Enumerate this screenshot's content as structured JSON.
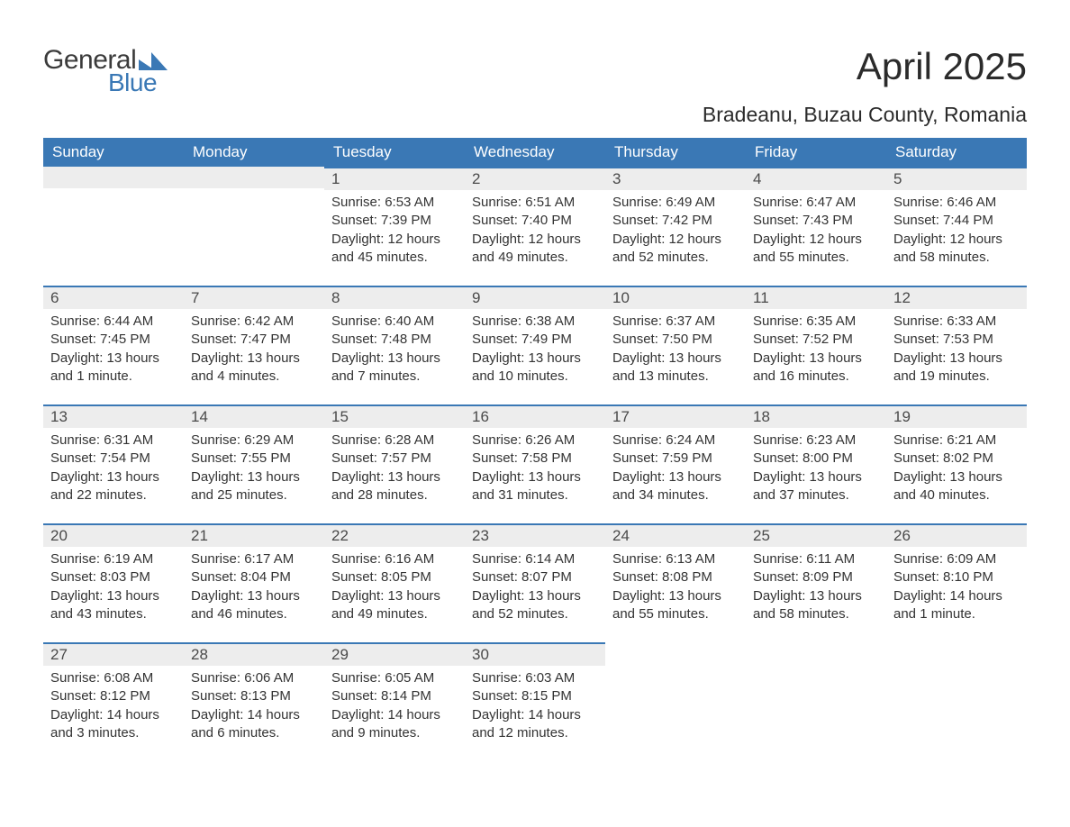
{
  "logo": {
    "text1": "General",
    "text2": "Blue"
  },
  "title": "April 2025",
  "subtitle": "Bradeanu, Buzau County, Romania",
  "colors": {
    "header_bg": "#3a78b5",
    "header_text": "#ffffff",
    "daynum_bg": "#ededed",
    "daynum_text": "#4a4a4a",
    "body_text": "#333333",
    "divider": "#3a78b5",
    "page_bg": "#ffffff"
  },
  "columns": [
    "Sunday",
    "Monday",
    "Tuesday",
    "Wednesday",
    "Thursday",
    "Friday",
    "Saturday"
  ],
  "weeks": [
    [
      null,
      null,
      {
        "n": "1",
        "sunrise": "6:53 AM",
        "sunset": "7:39 PM",
        "daylight": "12 hours and 45 minutes."
      },
      {
        "n": "2",
        "sunrise": "6:51 AM",
        "sunset": "7:40 PM",
        "daylight": "12 hours and 49 minutes."
      },
      {
        "n": "3",
        "sunrise": "6:49 AM",
        "sunset": "7:42 PM",
        "daylight": "12 hours and 52 minutes."
      },
      {
        "n": "4",
        "sunrise": "6:47 AM",
        "sunset": "7:43 PM",
        "daylight": "12 hours and 55 minutes."
      },
      {
        "n": "5",
        "sunrise": "6:46 AM",
        "sunset": "7:44 PM",
        "daylight": "12 hours and 58 minutes."
      }
    ],
    [
      {
        "n": "6",
        "sunrise": "6:44 AM",
        "sunset": "7:45 PM",
        "daylight": "13 hours and 1 minute."
      },
      {
        "n": "7",
        "sunrise": "6:42 AM",
        "sunset": "7:47 PM",
        "daylight": "13 hours and 4 minutes."
      },
      {
        "n": "8",
        "sunrise": "6:40 AM",
        "sunset": "7:48 PM",
        "daylight": "13 hours and 7 minutes."
      },
      {
        "n": "9",
        "sunrise": "6:38 AM",
        "sunset": "7:49 PM",
        "daylight": "13 hours and 10 minutes."
      },
      {
        "n": "10",
        "sunrise": "6:37 AM",
        "sunset": "7:50 PM",
        "daylight": "13 hours and 13 minutes."
      },
      {
        "n": "11",
        "sunrise": "6:35 AM",
        "sunset": "7:52 PM",
        "daylight": "13 hours and 16 minutes."
      },
      {
        "n": "12",
        "sunrise": "6:33 AM",
        "sunset": "7:53 PM",
        "daylight": "13 hours and 19 minutes."
      }
    ],
    [
      {
        "n": "13",
        "sunrise": "6:31 AM",
        "sunset": "7:54 PM",
        "daylight": "13 hours and 22 minutes."
      },
      {
        "n": "14",
        "sunrise": "6:29 AM",
        "sunset": "7:55 PM",
        "daylight": "13 hours and 25 minutes."
      },
      {
        "n": "15",
        "sunrise": "6:28 AM",
        "sunset": "7:57 PM",
        "daylight": "13 hours and 28 minutes."
      },
      {
        "n": "16",
        "sunrise": "6:26 AM",
        "sunset": "7:58 PM",
        "daylight": "13 hours and 31 minutes."
      },
      {
        "n": "17",
        "sunrise": "6:24 AM",
        "sunset": "7:59 PM",
        "daylight": "13 hours and 34 minutes."
      },
      {
        "n": "18",
        "sunrise": "6:23 AM",
        "sunset": "8:00 PM",
        "daylight": "13 hours and 37 minutes."
      },
      {
        "n": "19",
        "sunrise": "6:21 AM",
        "sunset": "8:02 PM",
        "daylight": "13 hours and 40 minutes."
      }
    ],
    [
      {
        "n": "20",
        "sunrise": "6:19 AM",
        "sunset": "8:03 PM",
        "daylight": "13 hours and 43 minutes."
      },
      {
        "n": "21",
        "sunrise": "6:17 AM",
        "sunset": "8:04 PM",
        "daylight": "13 hours and 46 minutes."
      },
      {
        "n": "22",
        "sunrise": "6:16 AM",
        "sunset": "8:05 PM",
        "daylight": "13 hours and 49 minutes."
      },
      {
        "n": "23",
        "sunrise": "6:14 AM",
        "sunset": "8:07 PM",
        "daylight": "13 hours and 52 minutes."
      },
      {
        "n": "24",
        "sunrise": "6:13 AM",
        "sunset": "8:08 PM",
        "daylight": "13 hours and 55 minutes."
      },
      {
        "n": "25",
        "sunrise": "6:11 AM",
        "sunset": "8:09 PM",
        "daylight": "13 hours and 58 minutes."
      },
      {
        "n": "26",
        "sunrise": "6:09 AM",
        "sunset": "8:10 PM",
        "daylight": "14 hours and 1 minute."
      }
    ],
    [
      {
        "n": "27",
        "sunrise": "6:08 AM",
        "sunset": "8:12 PM",
        "daylight": "14 hours and 3 minutes."
      },
      {
        "n": "28",
        "sunrise": "6:06 AM",
        "sunset": "8:13 PM",
        "daylight": "14 hours and 6 minutes."
      },
      {
        "n": "29",
        "sunrise": "6:05 AM",
        "sunset": "8:14 PM",
        "daylight": "14 hours and 9 minutes."
      },
      {
        "n": "30",
        "sunrise": "6:03 AM",
        "sunset": "8:15 PM",
        "daylight": "14 hours and 12 minutes."
      },
      null,
      null,
      null
    ]
  ],
  "labels": {
    "sunrise": "Sunrise:",
    "sunset": "Sunset:",
    "daylight": "Daylight:"
  }
}
